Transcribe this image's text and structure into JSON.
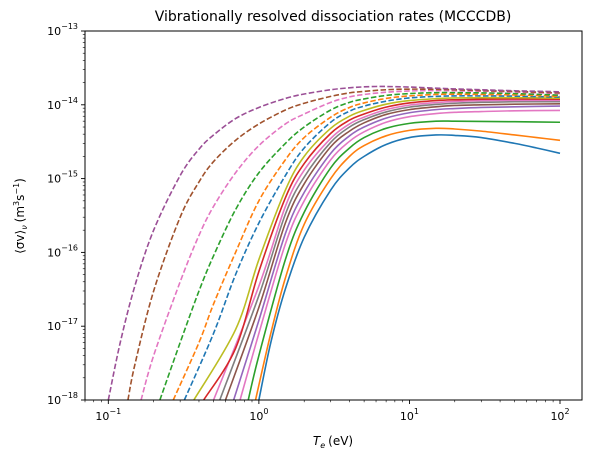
{
  "chart_data": {
    "type": "line",
    "title": "Vibrationally resolved dissociation rates (MCCCDB)",
    "xlabel": {
      "var": "T",
      "sub": "e",
      "unit": "(eV)"
    },
    "ylabel": {
      "text": "⟨σv⟩",
      "sub": "ν",
      "unit_open": "(m",
      "unit_exp": "3",
      "unit_mid": "s",
      "unit_exp2": "−1",
      "unit_close": ")"
    },
    "x_scale": "log",
    "y_scale": "log",
    "xlim": [
      0.07,
      140
    ],
    "ylim": [
      1e-18,
      1e-13
    ],
    "x_ticks": [
      {
        "value": 0.1,
        "base": "10",
        "exp": "−1"
      },
      {
        "value": 1,
        "base": "10",
        "exp": "0"
      },
      {
        "value": 10,
        "base": "10",
        "exp": "1"
      },
      {
        "value": 100,
        "base": "10",
        "exp": "2"
      }
    ],
    "y_ticks": [
      {
        "value": 1e-18,
        "base": "10",
        "exp": "−18"
      },
      {
        "value": 1e-17,
        "base": "10",
        "exp": "−17"
      },
      {
        "value": 1e-16,
        "base": "10",
        "exp": "−16"
      },
      {
        "value": 1e-15,
        "base": "10",
        "exp": "−15"
      },
      {
        "value": 1e-14,
        "base": "10",
        "exp": "−14"
      },
      {
        "value": 1e-13,
        "base": "10",
        "exp": "−13"
      }
    ],
    "grid": false,
    "legend": false,
    "series": [
      {
        "color": "#1f77b4",
        "style": "solid",
        "points": [
          [
            1.0,
            1e-18
          ],
          [
            1.2,
            6e-18
          ],
          [
            1.5,
            3.2e-17
          ],
          [
            2,
            1.6e-16
          ],
          [
            3,
            7e-16
          ],
          [
            4,
            1.4e-15
          ],
          [
            5,
            2e-15
          ],
          [
            7,
            2.9e-15
          ],
          [
            10,
            3.6e-15
          ],
          [
            15,
            3.9e-15
          ],
          [
            20,
            3.85e-15
          ],
          [
            30,
            3.6e-15
          ],
          [
            50,
            3e-15
          ],
          [
            70,
            2.6e-15
          ],
          [
            100,
            2.2e-15
          ]
        ]
      },
      {
        "color": "#ff7f0e",
        "style": "solid",
        "points": [
          [
            0.95,
            1e-18
          ],
          [
            1.2,
            8e-18
          ],
          [
            1.5,
            4.5e-17
          ],
          [
            2,
            2.4e-16
          ],
          [
            3,
            1e-15
          ],
          [
            4,
            2e-15
          ],
          [
            5,
            2.8e-15
          ],
          [
            7,
            3.8e-15
          ],
          [
            10,
            4.5e-15
          ],
          [
            15,
            4.8e-15
          ],
          [
            20,
            4.7e-15
          ],
          [
            30,
            4.4e-15
          ],
          [
            50,
            3.9e-15
          ],
          [
            70,
            3.6e-15
          ],
          [
            100,
            3.3e-15
          ]
        ]
      },
      {
        "color": "#2ca02c",
        "style": "solid",
        "points": [
          [
            0.85,
            1e-18
          ],
          [
            1,
            4e-18
          ],
          [
            1.5,
            8e-17
          ],
          [
            2,
            3.5e-16
          ],
          [
            3,
            1.4e-15
          ],
          [
            4,
            2.6e-15
          ],
          [
            5,
            3.6e-15
          ],
          [
            7,
            4.8e-15
          ],
          [
            10,
            5.6e-15
          ],
          [
            15,
            6e-15
          ],
          [
            20,
            6e-15
          ],
          [
            30,
            5.95e-15
          ],
          [
            50,
            5.9e-15
          ],
          [
            100,
            5.8e-15
          ]
        ]
      },
      {
        "color": "#e377c2",
        "style": "solid",
        "points": [
          [
            0.75,
            1e-18
          ],
          [
            1,
            8e-18
          ],
          [
            1.5,
            1.3e-16
          ],
          [
            2,
            5e-16
          ],
          [
            3,
            1.8e-15
          ],
          [
            4,
            3.2e-15
          ],
          [
            5,
            4.3e-15
          ],
          [
            7,
            5.8e-15
          ],
          [
            10,
            6.9e-15
          ],
          [
            15,
            7.6e-15
          ],
          [
            20,
            7.9e-15
          ],
          [
            30,
            8.1e-15
          ],
          [
            50,
            8.3e-15
          ],
          [
            100,
            8.4e-15
          ]
        ]
      },
      {
        "color": "#9467bd",
        "style": "solid",
        "points": [
          [
            0.68,
            1e-18
          ],
          [
            1,
            1.2e-17
          ],
          [
            1.5,
            1.8e-16
          ],
          [
            2,
            6.5e-16
          ],
          [
            3,
            2.2e-15
          ],
          [
            4,
            3.8e-15
          ],
          [
            5,
            5e-15
          ],
          [
            7,
            6.6e-15
          ],
          [
            10,
            7.8e-15
          ],
          [
            15,
            8.6e-15
          ],
          [
            20,
            8.9e-15
          ],
          [
            30,
            9.2e-15
          ],
          [
            50,
            9.4e-15
          ],
          [
            100,
            9.6e-15
          ]
        ]
      },
      {
        "color": "#8c564b",
        "style": "solid",
        "points": [
          [
            0.6,
            1e-18
          ],
          [
            1,
            1.8e-17
          ],
          [
            1.5,
            2.5e-16
          ],
          [
            2,
            8.5e-16
          ],
          [
            3,
            2.7e-15
          ],
          [
            4,
            4.4e-15
          ],
          [
            5,
            5.7e-15
          ],
          [
            7,
            7.4e-15
          ],
          [
            10,
            8.6e-15
          ],
          [
            15,
            9.4e-15
          ],
          [
            20,
            9.8e-15
          ],
          [
            30,
            1e-14
          ],
          [
            50,
            1.02e-14
          ],
          [
            100,
            1.03e-14
          ]
        ]
      },
      {
        "color": "#7f7f7f",
        "style": "solid",
        "points": [
          [
            0.55,
            1e-18
          ],
          [
            1,
            2.6e-17
          ],
          [
            1.5,
            3.3e-16
          ],
          [
            2,
            1.05e-15
          ],
          [
            3,
            3.1e-15
          ],
          [
            4,
            5e-15
          ],
          [
            5,
            6.3e-15
          ],
          [
            7,
            8e-15
          ],
          [
            10,
            9.3e-15
          ],
          [
            15,
            1.01e-14
          ],
          [
            20,
            1.05e-14
          ],
          [
            30,
            1.08e-14
          ],
          [
            50,
            1.1e-14
          ],
          [
            100,
            1.1e-14
          ]
        ]
      },
      {
        "color": "#e377c2",
        "style": "solid",
        "points": [
          [
            0.5,
            1e-18
          ],
          [
            1,
            3.5e-17
          ],
          [
            1.5,
            4.2e-16
          ],
          [
            2,
            1.3e-15
          ],
          [
            3,
            3.5e-15
          ],
          [
            4,
            5.5e-15
          ],
          [
            5,
            6.8e-15
          ],
          [
            7,
            8.6e-15
          ],
          [
            10,
            9.9e-15
          ],
          [
            15,
            1.07e-14
          ],
          [
            20,
            1.11e-14
          ],
          [
            30,
            1.14e-14
          ],
          [
            50,
            1.15e-14
          ],
          [
            100,
            1.15e-14
          ]
        ]
      },
      {
        "color": "#d62728",
        "style": "solid",
        "points": [
          [
            0.43,
            1e-18
          ],
          [
            0.7,
            5e-18
          ],
          [
            1,
            5.5e-17
          ],
          [
            1.5,
            5.5e-16
          ],
          [
            2,
            1.6e-15
          ],
          [
            3,
            4.1e-15
          ],
          [
            4,
            6.2e-15
          ],
          [
            5,
            7.5e-15
          ],
          [
            7,
            9.3e-15
          ],
          [
            10,
            1.06e-14
          ],
          [
            15,
            1.14e-14
          ],
          [
            20,
            1.17e-14
          ],
          [
            30,
            1.19e-14
          ],
          [
            50,
            1.2e-14
          ],
          [
            100,
            1.19e-14
          ]
        ]
      },
      {
        "color": "#bcbd22",
        "style": "solid",
        "points": [
          [
            0.37,
            1e-18
          ],
          [
            0.7,
            9e-18
          ],
          [
            1,
            8e-17
          ],
          [
            1.5,
            7e-16
          ],
          [
            2,
            2e-15
          ],
          [
            3,
            4.8e-15
          ],
          [
            4,
            7e-15
          ],
          [
            5,
            8.4e-15
          ],
          [
            7,
            1.02e-14
          ],
          [
            10,
            1.14e-14
          ],
          [
            15,
            1.21e-14
          ],
          [
            20,
            1.24e-14
          ],
          [
            30,
            1.25e-14
          ],
          [
            50,
            1.25e-14
          ],
          [
            100,
            1.23e-14
          ]
        ]
      },
      {
        "color": "#1f77b4",
        "style": "dashed",
        "points": [
          [
            0.32,
            1e-18
          ],
          [
            0.5,
            8e-18
          ],
          [
            0.7,
            5e-17
          ],
          [
            1,
            2.5e-16
          ],
          [
            1.5,
            1.1e-15
          ],
          [
            2,
            2.6e-15
          ],
          [
            3,
            5.8e-15
          ],
          [
            4,
            8.2e-15
          ],
          [
            5,
            9.6e-15
          ],
          [
            7,
            1.12e-14
          ],
          [
            10,
            1.24e-14
          ],
          [
            15,
            1.3e-14
          ],
          [
            20,
            1.32e-14
          ],
          [
            30,
            1.32e-14
          ],
          [
            50,
            1.31e-14
          ],
          [
            100,
            1.27e-14
          ]
        ]
      },
      {
        "color": "#ff7f0e",
        "style": "dashed",
        "points": [
          [
            0.27,
            1e-18
          ],
          [
            0.4,
            6e-18
          ],
          [
            0.5,
            2e-17
          ],
          [
            0.7,
            1e-16
          ],
          [
            1,
            5e-16
          ],
          [
            1.5,
            1.8e-15
          ],
          [
            2,
            3.6e-15
          ],
          [
            3,
            6.8e-15
          ],
          [
            4,
            9.2e-15
          ],
          [
            5,
            1.06e-14
          ],
          [
            7,
            1.22e-14
          ],
          [
            10,
            1.32e-14
          ],
          [
            15,
            1.38e-14
          ],
          [
            20,
            1.39e-14
          ],
          [
            30,
            1.38e-14
          ],
          [
            50,
            1.36e-14
          ],
          [
            100,
            1.3e-14
          ]
        ]
      },
      {
        "color": "#2ca02c",
        "style": "dashed",
        "points": [
          [
            0.22,
            1e-18
          ],
          [
            0.3,
            6e-18
          ],
          [
            0.4,
            3e-17
          ],
          [
            0.5,
            9e-17
          ],
          [
            0.7,
            3.8e-16
          ],
          [
            1,
            1.2e-15
          ],
          [
            1.5,
            3e-15
          ],
          [
            2,
            5e-15
          ],
          [
            3,
            8.5e-15
          ],
          [
            4,
            1.08e-14
          ],
          [
            5,
            1.2e-14
          ],
          [
            7,
            1.34e-14
          ],
          [
            10,
            1.42e-14
          ],
          [
            15,
            1.46e-14
          ],
          [
            20,
            1.46e-14
          ],
          [
            30,
            1.45e-14
          ],
          [
            50,
            1.42e-14
          ],
          [
            100,
            1.35e-14
          ]
        ]
      },
      {
        "color": "#e377c2",
        "style": "dashed",
        "points": [
          [
            0.165,
            1e-18
          ],
          [
            0.2,
            4e-18
          ],
          [
            0.3,
            4e-17
          ],
          [
            0.4,
            1.7e-16
          ],
          [
            0.5,
            4.2e-16
          ],
          [
            0.7,
            1.2e-15
          ],
          [
            1,
            2.8e-15
          ],
          [
            1.5,
            5.5e-15
          ],
          [
            2,
            7.5e-15
          ],
          [
            3,
            1.08e-14
          ],
          [
            4,
            1.28e-14
          ],
          [
            5,
            1.38e-14
          ],
          [
            7,
            1.48e-14
          ],
          [
            10,
            1.54e-14
          ],
          [
            15,
            1.56e-14
          ],
          [
            20,
            1.55e-14
          ],
          [
            30,
            1.53e-14
          ],
          [
            50,
            1.49e-14
          ],
          [
            100,
            1.42e-14
          ]
        ]
      },
      {
        "color": "#a0522d",
        "style": "dashed",
        "points": [
          [
            0.135,
            1e-18
          ],
          [
            0.15,
            3e-18
          ],
          [
            0.2,
            3e-17
          ],
          [
            0.3,
            3e-16
          ],
          [
            0.4,
            9e-16
          ],
          [
            0.5,
            1.7e-15
          ],
          [
            0.7,
            3.3e-15
          ],
          [
            1,
            5.5e-15
          ],
          [
            1.5,
            8.5e-15
          ],
          [
            2,
            1.05e-14
          ],
          [
            3,
            1.3e-14
          ],
          [
            4,
            1.45e-14
          ],
          [
            5,
            1.52e-14
          ],
          [
            7,
            1.6e-14
          ],
          [
            10,
            1.63e-14
          ],
          [
            15,
            1.62e-14
          ],
          [
            20,
            1.6e-14
          ],
          [
            30,
            1.56e-14
          ],
          [
            50,
            1.52e-14
          ],
          [
            100,
            1.45e-14
          ]
        ]
      },
      {
        "color": "#9b4f96",
        "style": "dashed",
        "points": [
          [
            0.1,
            1e-18
          ],
          [
            0.12,
            6e-18
          ],
          [
            0.15,
            3.5e-17
          ],
          [
            0.2,
            2e-16
          ],
          [
            0.3,
            1.1e-15
          ],
          [
            0.4,
            2.5e-15
          ],
          [
            0.5,
            3.9e-15
          ],
          [
            0.7,
            6.5e-15
          ],
          [
            1,
            9.2e-15
          ],
          [
            1.5,
            1.22e-14
          ],
          [
            2,
            1.4e-14
          ],
          [
            3,
            1.6e-14
          ],
          [
            4,
            1.7e-14
          ],
          [
            5,
            1.75e-14
          ],
          [
            6,
            1.77e-14
          ],
          [
            7,
            1.77e-14
          ],
          [
            10,
            1.74e-14
          ],
          [
            15,
            1.68e-14
          ],
          [
            20,
            1.64e-14
          ],
          [
            30,
            1.6e-14
          ],
          [
            50,
            1.55e-14
          ],
          [
            100,
            1.5e-14
          ]
        ]
      }
    ]
  }
}
